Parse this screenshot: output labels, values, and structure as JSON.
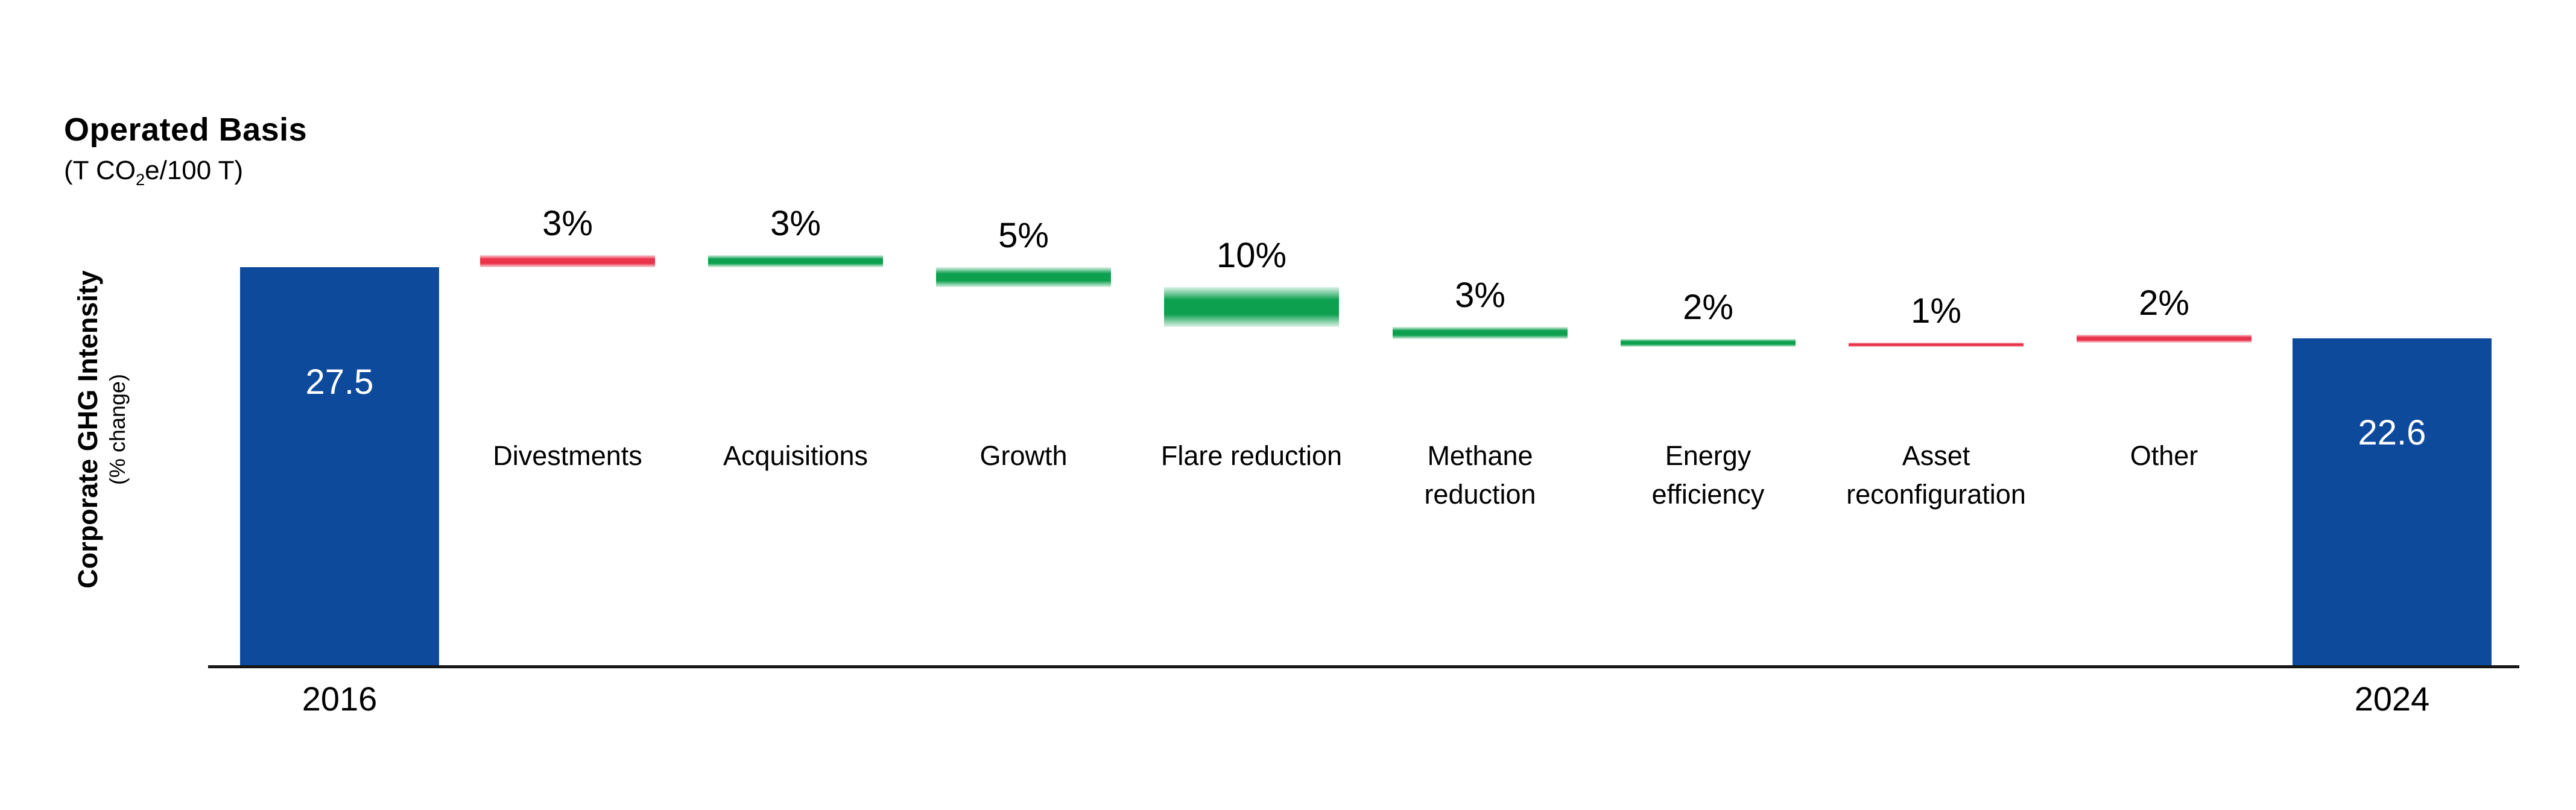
{
  "header": {
    "title": "Operated Basis",
    "subtitle_pre": "(T CO",
    "subtitle_sub": "2",
    "subtitle_post": "e/100 T)"
  },
  "y_axis": {
    "label": "Corporate GHG Intensity",
    "sublabel": "(% change)"
  },
  "chart_data": {
    "type": "waterfall",
    "title": "Operated Basis",
    "unit_label": "(T CO2e/100 T)",
    "ylabel": "Corporate GHG Intensity (% change)",
    "grid": false,
    "legend": false,
    "start": {
      "category": "2016",
      "value": 27.5,
      "value_label": "27.5"
    },
    "end": {
      "category": "2024",
      "value": 22.6,
      "value_label": "22.6"
    },
    "steps": [
      {
        "label": "Divestments",
        "lines": [
          "Divestments"
        ],
        "percent": 3,
        "display": "3%",
        "direction": "increase"
      },
      {
        "label": "Acquisitions",
        "lines": [
          "Acquisitions"
        ],
        "percent": 3,
        "display": "3%",
        "direction": "decrease"
      },
      {
        "label": "Growth",
        "lines": [
          "Growth"
        ],
        "percent": 5,
        "display": "5%",
        "direction": "decrease"
      },
      {
        "label": "Flare reduction",
        "lines": [
          "Flare reduction"
        ],
        "percent": 10,
        "display": "10%",
        "direction": "decrease"
      },
      {
        "label": "Methane reduction",
        "lines": [
          "Methane",
          "reduction"
        ],
        "percent": 3,
        "display": "3%",
        "direction": "decrease"
      },
      {
        "label": "Energy efficiency",
        "lines": [
          "Energy",
          "efficiency"
        ],
        "percent": 2,
        "display": "2%",
        "direction": "decrease"
      },
      {
        "label": "Asset reconfiguration",
        "lines": [
          "Asset",
          "reconfiguration"
        ],
        "percent": 1,
        "display": "1%",
        "direction": "increase"
      },
      {
        "label": "Other",
        "lines": [
          "Other"
        ],
        "percent": 2,
        "display": "2%",
        "direction": "increase"
      }
    ],
    "colors": {
      "start_end_bar": "#0E4A9C",
      "increase": "#E9334B",
      "increase_edge": "#FAD4DA",
      "decrease": "#0CA04F",
      "decrease_edge": "#DDF2E6",
      "axis": "#161616",
      "value_text": "#FFFFFF",
      "label_text": "#000000"
    }
  }
}
